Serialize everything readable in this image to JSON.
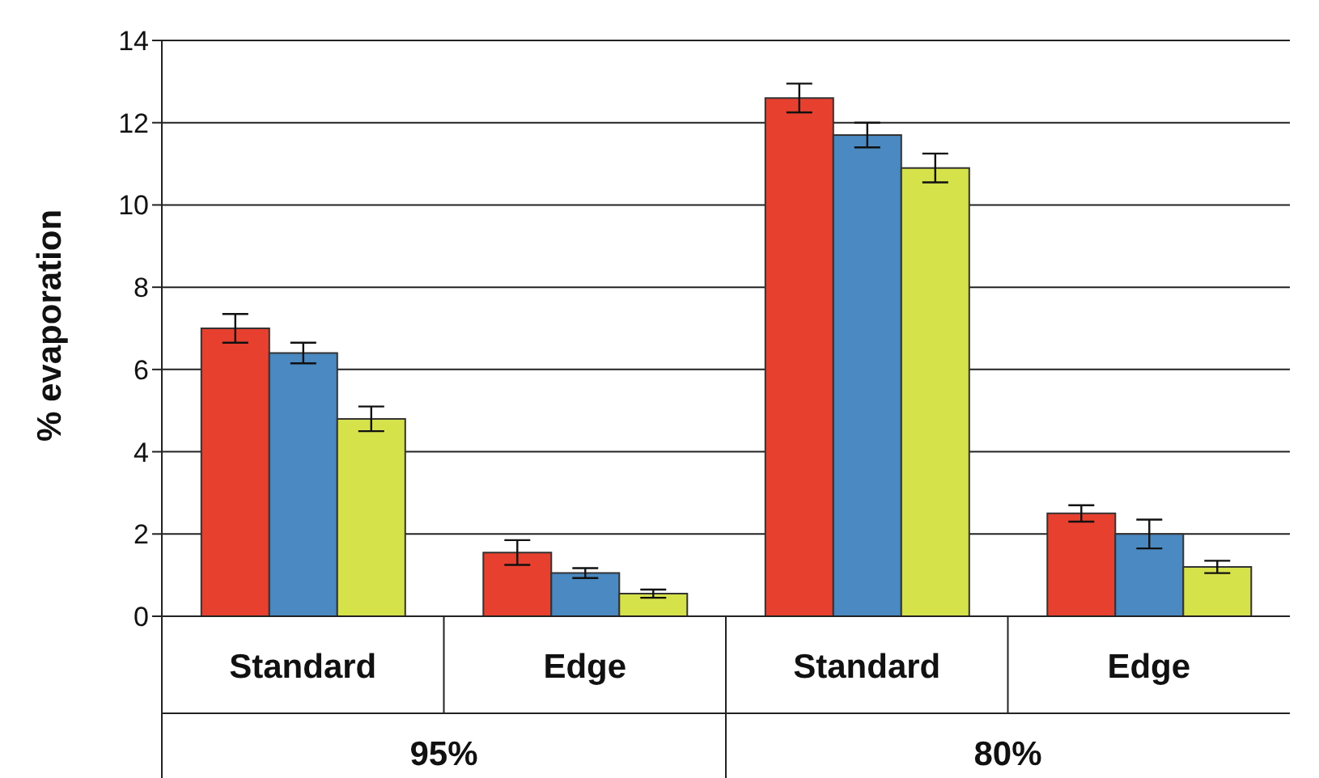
{
  "chart_data": {
    "type": "bar",
    "ylabel": "% evaporation",
    "categories": [
      "Standard",
      "Edge",
      "Standard",
      "Edge"
    ],
    "series": [
      {
        "color": "#e8402f",
        "values": [
          7.0,
          1.55,
          12.6,
          2.5
        ],
        "errors": [
          0.35,
          0.3,
          0.35,
          0.2
        ]
      },
      {
        "color": "#4a89c1",
        "values": [
          6.4,
          1.05,
          11.7,
          2.0
        ],
        "errors": [
          0.25,
          0.12,
          0.3,
          0.35
        ]
      },
      {
        "color": "#d6e24a",
        "values": [
          4.8,
          0.55,
          10.9,
          1.2
        ],
        "errors": [
          0.3,
          0.1,
          0.35,
          0.15
        ]
      }
    ],
    "ylim": [
      0,
      14
    ],
    "yticks": [
      0,
      2,
      4,
      6,
      8,
      10,
      12,
      14
    ],
    "grid": "y",
    "legend": false,
    "annotations": [
      "95%",
      "80%"
    ]
  }
}
